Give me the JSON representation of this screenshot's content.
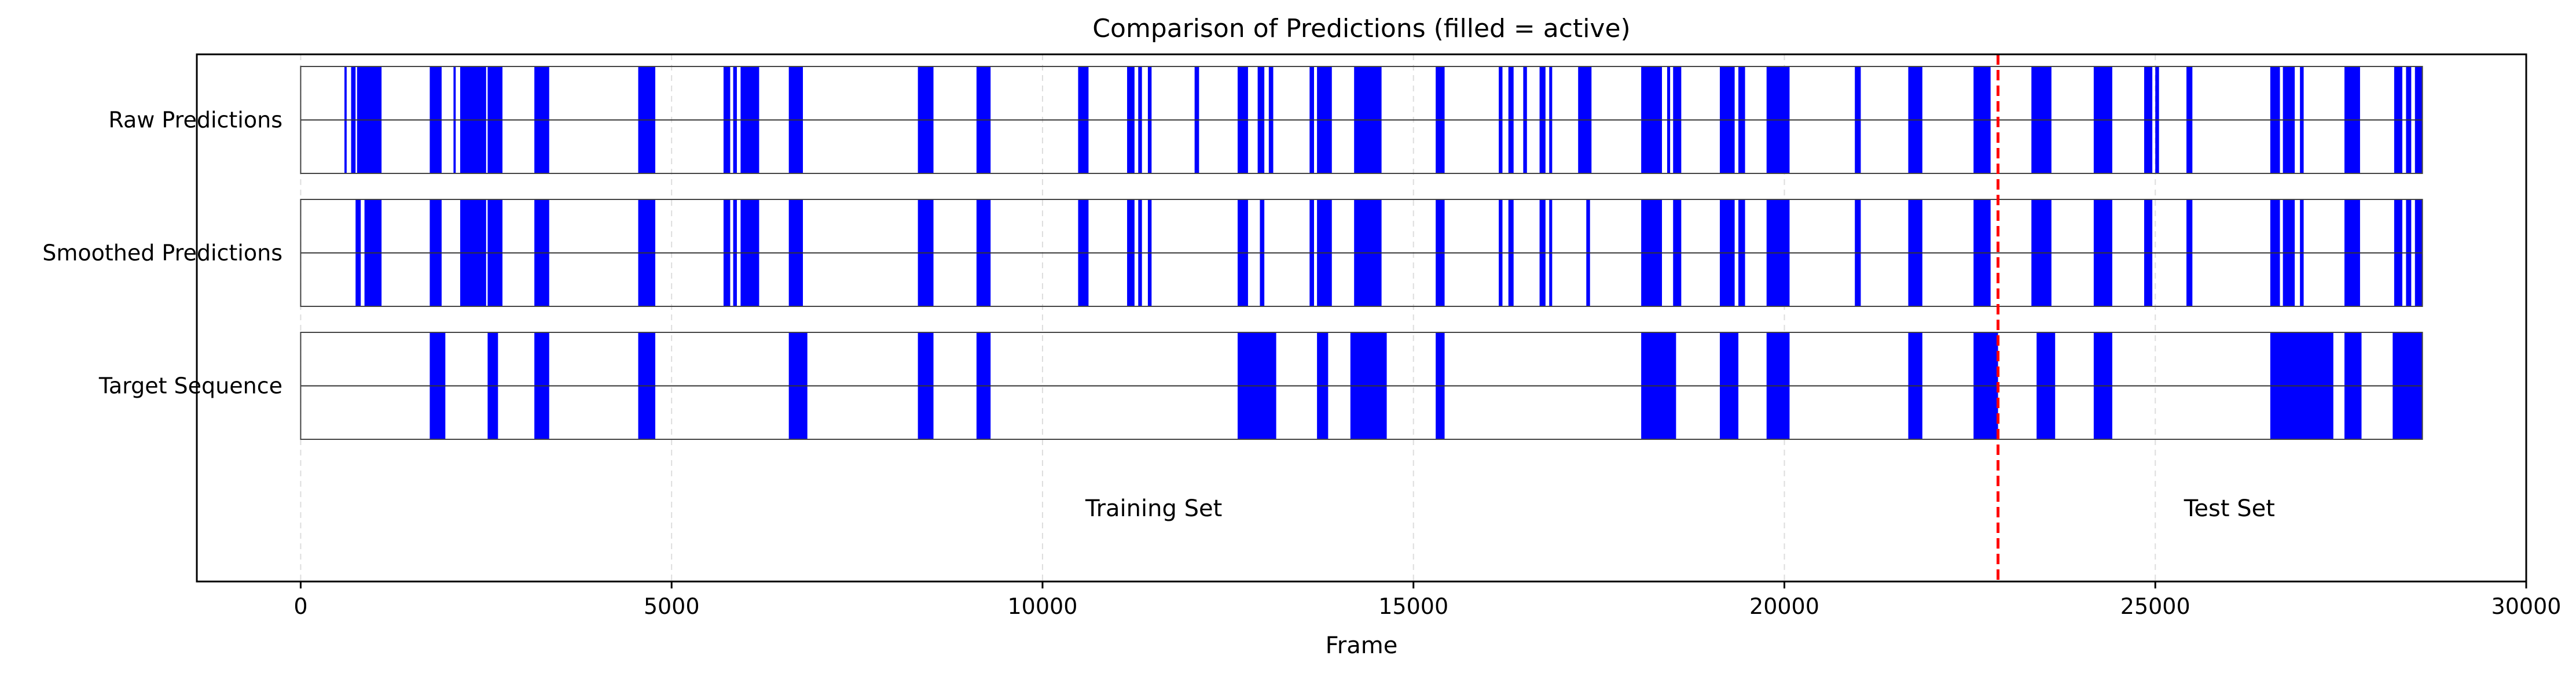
{
  "chart_data": {
    "type": "timeline",
    "title": "Comparison of Predictions (filled = active)",
    "xlabel": "Frame",
    "ylabel": "",
    "xlim": [
      -1400,
      30000
    ],
    "xticks": [
      0,
      5000,
      10000,
      15000,
      20000,
      25000,
      30000
    ],
    "grid": "vertical dashed at x ticks",
    "sequence_range": [
      0,
      28600
    ],
    "colors": {
      "active": "#0000ff",
      "split_line": "#ff0000",
      "background": "#ffffff",
      "grid": "#dddddd"
    },
    "split": {
      "x": 22880,
      "style": "red dashed vertical line"
    },
    "annotations": [
      {
        "text": "Training Set",
        "x": 11500
      },
      {
        "text": "Test Set",
        "x": 26000
      }
    ],
    "series": [
      {
        "name": "Raw Predictions",
        "active_intervals": [
          [
            590,
            620
          ],
          [
            680,
            740
          ],
          [
            760,
            1090
          ],
          [
            1740,
            1900
          ],
          [
            2060,
            2090
          ],
          [
            2150,
            2500
          ],
          [
            2520,
            2720
          ],
          [
            3150,
            3350
          ],
          [
            4550,
            4780
          ],
          [
            5700,
            5790
          ],
          [
            5830,
            5880
          ],
          [
            5930,
            6180
          ],
          [
            6580,
            6770
          ],
          [
            8320,
            8530
          ],
          [
            9110,
            9300
          ],
          [
            10480,
            10620
          ],
          [
            11140,
            11240
          ],
          [
            11290,
            11340
          ],
          [
            11420,
            11470
          ],
          [
            12050,
            12110
          ],
          [
            12630,
            12770
          ],
          [
            12900,
            12990
          ],
          [
            13050,
            13110
          ],
          [
            13600,
            13660
          ],
          [
            13700,
            13900
          ],
          [
            14200,
            14570
          ],
          [
            15300,
            15420
          ],
          [
            16150,
            16200
          ],
          [
            16280,
            16350
          ],
          [
            16480,
            16530
          ],
          [
            16700,
            16780
          ],
          [
            16830,
            16870
          ],
          [
            17220,
            17400
          ],
          [
            18070,
            18350
          ],
          [
            18420,
            18460
          ],
          [
            18500,
            18610
          ],
          [
            19130,
            19330
          ],
          [
            19380,
            19470
          ],
          [
            19760,
            20070
          ],
          [
            20950,
            21030
          ],
          [
            21670,
            21860
          ],
          [
            22550,
            22780
          ],
          [
            23330,
            23600
          ],
          [
            24170,
            24420
          ],
          [
            24850,
            24960
          ],
          [
            25000,
            25050
          ],
          [
            25420,
            25500
          ],
          [
            26550,
            26680
          ],
          [
            26720,
            26880
          ],
          [
            26950,
            27000
          ],
          [
            27550,
            27760
          ],
          [
            28220,
            28330
          ],
          [
            28380,
            28450
          ],
          [
            28500,
            28600
          ]
        ]
      },
      {
        "name": "Smoothed Predictions",
        "active_intervals": [
          [
            740,
            810
          ],
          [
            860,
            1090
          ],
          [
            1740,
            1900
          ],
          [
            2150,
            2500
          ],
          [
            2520,
            2720
          ],
          [
            3150,
            3350
          ],
          [
            4550,
            4780
          ],
          [
            5700,
            5790
          ],
          [
            5830,
            5880
          ],
          [
            5930,
            6180
          ],
          [
            6580,
            6770
          ],
          [
            8320,
            8530
          ],
          [
            9110,
            9300
          ],
          [
            10480,
            10620
          ],
          [
            11140,
            11240
          ],
          [
            11290,
            11340
          ],
          [
            11420,
            11470
          ],
          [
            12630,
            12770
          ],
          [
            12930,
            12990
          ],
          [
            13600,
            13660
          ],
          [
            13700,
            13900
          ],
          [
            14200,
            14570
          ],
          [
            15300,
            15420
          ],
          [
            16150,
            16200
          ],
          [
            16280,
            16350
          ],
          [
            16700,
            16780
          ],
          [
            16830,
            16870
          ],
          [
            17330,
            17380
          ],
          [
            18070,
            18350
          ],
          [
            18500,
            18610
          ],
          [
            19130,
            19330
          ],
          [
            19380,
            19470
          ],
          [
            19760,
            20070
          ],
          [
            20950,
            21030
          ],
          [
            21670,
            21860
          ],
          [
            22550,
            22780
          ],
          [
            23330,
            23600
          ],
          [
            24170,
            24420
          ],
          [
            24850,
            24960
          ],
          [
            25420,
            25500
          ],
          [
            26550,
            26680
          ],
          [
            26720,
            26880
          ],
          [
            26950,
            27000
          ],
          [
            27550,
            27760
          ],
          [
            28220,
            28330
          ],
          [
            28380,
            28450
          ],
          [
            28500,
            28600
          ]
        ]
      },
      {
        "name": "Target Sequence",
        "active_intervals": [
          [
            1740,
            1950
          ],
          [
            2520,
            2660
          ],
          [
            3150,
            3350
          ],
          [
            4550,
            4780
          ],
          [
            6580,
            6830
          ],
          [
            8320,
            8530
          ],
          [
            9110,
            9300
          ],
          [
            12630,
            13150
          ],
          [
            13700,
            13850
          ],
          [
            14150,
            14640
          ],
          [
            15300,
            15420
          ],
          [
            18070,
            18540
          ],
          [
            19130,
            19380
          ],
          [
            19760,
            20070
          ],
          [
            21670,
            21860
          ],
          [
            22550,
            22880
          ],
          [
            23400,
            23650
          ],
          [
            24170,
            24420
          ],
          [
            26550,
            27400
          ],
          [
            27550,
            27780
          ],
          [
            28200,
            28600
          ]
        ]
      }
    ]
  }
}
